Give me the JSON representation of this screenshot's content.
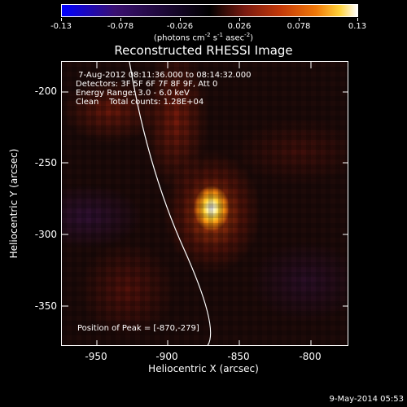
{
  "colorbar": {
    "labels": [
      "-0.13",
      "-0.078",
      "-0.026",
      "0.026",
      "0.078",
      "0.13"
    ],
    "units_main": "(photons cm",
    "units_exp1": "-2",
    "units_mid": " s",
    "units_exp2": "-1",
    "units_tail": " asec",
    "units_exp3": "-2",
    "units_close": ")"
  },
  "title": "Reconstructed RHESSI Image",
  "info": {
    "time": " 7-Aug-2012 08:11:36.000 to 08:14:32.000",
    "detectors": "Detectors: 3F 5F 6F 7F 8F 9F, Att 0",
    "energy": "Energy Range: 3.0 - 6.0 keV",
    "clean": "Clean    Total counts: 1.28E+04"
  },
  "peak": "Position of Peak = [-870,-279]",
  "axes": {
    "xlabel": "Heliocentric X (arcsec)",
    "ylabel": "Heliocentric Y (arcsec)",
    "xticks": [
      "-950",
      "-900",
      "-850",
      "-800"
    ],
    "yticks": [
      "-200",
      "-250",
      "-300",
      "-350"
    ]
  },
  "footer": "9-May-2014 05:53"
}
